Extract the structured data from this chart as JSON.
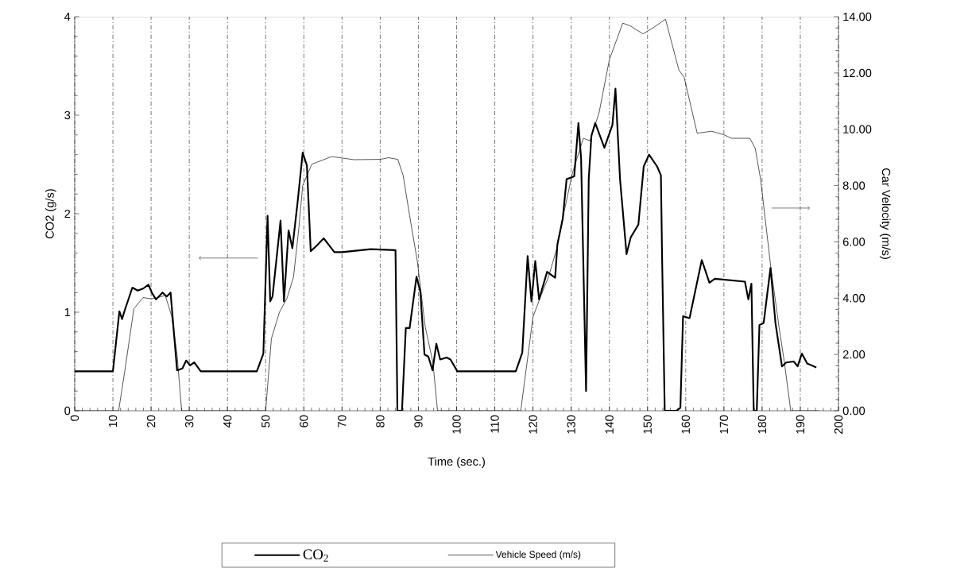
{
  "chart_data": {
    "type": "line",
    "xlabel": "Time (sec.)",
    "ylabel": "CO2 (g/s)",
    "y2label": "Car Velocity (m/s)",
    "xlim": [
      0,
      200
    ],
    "xticks": [
      0,
      10,
      20,
      30,
      40,
      50,
      60,
      70,
      80,
      90,
      100,
      110,
      120,
      130,
      140,
      150,
      160,
      170,
      180,
      190,
      200
    ],
    "ylim": [
      0,
      4
    ],
    "yticks": [
      0,
      1,
      2,
      3,
      4
    ],
    "y2lim": [
      0,
      14
    ],
    "y2ticks": [
      {
        "value": 0,
        "label": "0.00"
      },
      {
        "value": 2,
        "label": "2.00"
      },
      {
        "value": 4,
        "label": "4.00"
      },
      {
        "value": 6,
        "label": "6.00"
      },
      {
        "value": 8,
        "label": "8.00"
      },
      {
        "value": 10,
        "label": "10.00"
      },
      {
        "value": 12,
        "label": "12.00"
      },
      {
        "value": 14,
        "label": "14.00"
      }
    ],
    "grid": "x",
    "legend": "bottom",
    "series": [
      {
        "name": "CO$_{2}$",
        "color": "#000000",
        "x": [
          0,
          10,
          11.7,
          12.4,
          13.1,
          15.1,
          16.5,
          17.9,
          19.3,
          20.3,
          21.3,
          23.0,
          24.1,
          25.1,
          26.8,
          28.2,
          29.2,
          30.2,
          31.3,
          33.0,
          47.7,
          49.4,
          50.5,
          51.2,
          51.8,
          53.9,
          54.8,
          56.0,
          57.0,
          58.4,
          59.7,
          60.8,
          61.8,
          63.2,
          65.2,
          68.0,
          70.0,
          77.5,
          84.0,
          84.5,
          85.7,
          86.7,
          87.7,
          89.5,
          90.5,
          91.6,
          92.6,
          93.7,
          94.7,
          95.7,
          97.4,
          98.4,
          100.2,
          115.5,
          117.2,
          118.6,
          119.6,
          120.6,
          121.6,
          123.7,
          125.8,
          126.4,
          127.8,
          128.8,
          130.8,
          131.9,
          132.6,
          133.9,
          134.6,
          135.3,
          136.3,
          138.7,
          140.8,
          141.6,
          142.8,
          144.5,
          145.6,
          147.6,
          149.0,
          150.4,
          152.5,
          153.5,
          153.8,
          154.5,
          157.5,
          158.6,
          159.3,
          161,
          164.2,
          166.2,
          167.6,
          175.5,
          176.4,
          177.2,
          177.8,
          178.6,
          179.3,
          180.4,
          182.2,
          183.5,
          185.2,
          186.3,
          188.3,
          189.3,
          190.4,
          191.8,
          194.2
        ],
        "values": [
          0.4,
          0.4,
          1.01,
          0.93,
          1.02,
          1.25,
          1.22,
          1.24,
          1.28,
          1.19,
          1.13,
          1.2,
          1.16,
          1.2,
          0.41,
          0.43,
          0.51,
          0.46,
          0.49,
          0.4,
          0.4,
          0.58,
          1.98,
          1.11,
          1.16,
          1.93,
          1.11,
          1.83,
          1.65,
          2.13,
          2.62,
          2.49,
          1.62,
          1.67,
          1.75,
          1.61,
          1.61,
          1.64,
          1.63,
          0,
          0,
          0.84,
          0.84,
          1.36,
          1.21,
          0.57,
          0.55,
          0.41,
          0.68,
          0.52,
          0.54,
          0.52,
          0.4,
          0.4,
          0.59,
          1.57,
          1.11,
          1.52,
          1.13,
          1.41,
          1.35,
          1.69,
          1.95,
          2.35,
          2.38,
          2.92,
          2.56,
          0.2,
          2.35,
          2.79,
          2.92,
          2.67,
          2.9,
          3.27,
          2.35,
          1.59,
          1.76,
          1.89,
          2.48,
          2.6,
          2.48,
          2.39,
          1.58,
          0,
          0,
          0.03,
          0.96,
          0.94,
          1.53,
          1.3,
          1.34,
          1.31,
          1.13,
          1.29,
          0,
          0,
          0.87,
          0.89,
          1.45,
          0.89,
          0.45,
          0.49,
          0.5,
          0.45,
          0.58,
          0.48,
          0.44
        ]
      },
      {
        "name": "Vehicle Speed (m/s)",
        "color": "#000000",
        "axis": "y2",
        "x": [
          0,
          11.5,
          13.1,
          15.5,
          17.9,
          19.9,
          21.3,
          23.7,
          25.4,
          26.8,
          28,
          50,
          51.5,
          53.6,
          55.6,
          57.3,
          58.7,
          59.7,
          62.1,
          67.3,
          73.1,
          80,
          82.2,
          84.6,
          86.0,
          87.7,
          89.7,
          91.8,
          93.8,
          95,
          116.8,
          120,
          122,
          124.1,
          126.2,
          128.2,
          130.3,
          131.6,
          133.2,
          134.9,
          137.3,
          140.0,
          143.5,
          145.4,
          148.8,
          151.3,
          154.7,
          158.2,
          159.6,
          163.0,
          166.8,
          169.9,
          172.0,
          176.8,
          178.2,
          179.6,
          182.3,
          184.4,
          185.8,
          187.5,
          195
        ],
        "values": [
          0,
          0,
          1.4,
          3.63,
          4.02,
          3.98,
          4.0,
          4.1,
          3.36,
          2.0,
          0,
          0,
          2.56,
          3.5,
          4.0,
          4.76,
          6.5,
          8.0,
          8.76,
          9.03,
          8.92,
          8.93,
          8.99,
          8.93,
          8.36,
          6.93,
          5.32,
          2.97,
          1.72,
          0,
          0,
          3.33,
          4.06,
          4.77,
          5.74,
          7.1,
          8.43,
          9.0,
          9.68,
          9.59,
          10.58,
          12.47,
          13.77,
          13.68,
          13.39,
          13.59,
          13.91,
          12.11,
          11.84,
          9.86,
          9.93,
          9.81,
          9.68,
          9.68,
          9.32,
          8.23,
          5.08,
          3.0,
          1.75,
          0,
          0
        ]
      }
    ]
  }
}
